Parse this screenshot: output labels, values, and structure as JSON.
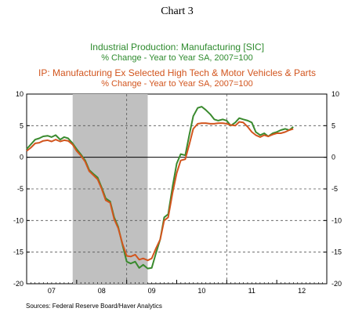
{
  "chart_data": {
    "type": "line",
    "header": "Chart 3",
    "title_lines": [
      {
        "text": "Industrial Production: Manufacturing [SIC]",
        "color": "#2e8b2e"
      },
      {
        "text": "% Change - Year to Year    SA, 2007=100",
        "color": "#2e8b2e"
      },
      {
        "text": "IP: Manufacturing Ex Selected High Tech & Motor Vehicles & Parts",
        "color": "#d2551e"
      },
      {
        "text": "% Change - Year to Year    SA, 2007=100",
        "color": "#d2551e"
      }
    ],
    "source": "Sources:  Federal Reserve Board/Haver Analytics",
    "ylim": [
      -20,
      10
    ],
    "yticks": [
      10,
      5,
      0,
      -5,
      -10,
      -15,
      -20
    ],
    "ytick_labels": [
      "10",
      "5",
      "0",
      "-5",
      "-10",
      "-15",
      "-20"
    ],
    "xlim": [
      2007.0,
      2013.0
    ],
    "x_category_labels": [
      {
        "label": "07",
        "at": 2007.5
      },
      {
        "label": "08",
        "at": 2008.5
      },
      {
        "label": "09",
        "at": 2009.5
      },
      {
        "label": "10",
        "at": 2010.5
      },
      {
        "label": "11",
        "at": 2011.5
      },
      {
        "label": "12",
        "at": 2012.5
      }
    ],
    "recession": {
      "start": 2007.92,
      "end": 2009.42,
      "color": "#c0c0c0"
    },
    "grid": "dashed reference lines at y=5, -5, -10, -15 and years 2009, 2011",
    "series": [
      {
        "color": "#3a8a2e",
        "x": [
          2007.0,
          2007.08,
          2007.17,
          2007.25,
          2007.33,
          2007.42,
          2007.5,
          2007.58,
          2007.67,
          2007.75,
          2007.83,
          2007.92,
          2008.0,
          2008.08,
          2008.17,
          2008.25,
          2008.33,
          2008.42,
          2008.5,
          2008.58,
          2008.67,
          2008.75,
          2008.83,
          2008.92,
          2009.0,
          2009.08,
          2009.17,
          2009.25,
          2009.33,
          2009.42,
          2009.5,
          2009.58,
          2009.67,
          2009.75,
          2009.83,
          2009.92,
          2010.0,
          2010.08,
          2010.17,
          2010.25,
          2010.33,
          2010.42,
          2010.5,
          2010.58,
          2010.67,
          2010.75,
          2010.83,
          2010.92,
          2011.0,
          2011.08,
          2011.17,
          2011.25,
          2011.33,
          2011.42,
          2011.5,
          2011.58,
          2011.67,
          2011.75,
          2011.83,
          2011.92,
          2012.0,
          2012.08,
          2012.17,
          2012.25,
          2012.33
        ],
        "y": [
          1.3,
          2.0,
          2.8,
          3.0,
          3.3,
          3.4,
          3.2,
          3.5,
          2.8,
          3.2,
          3.0,
          2.2,
          1.3,
          0.5,
          -0.5,
          -2.0,
          -2.6,
          -3.2,
          -4.8,
          -6.5,
          -7.0,
          -9.5,
          -11.0,
          -14.0,
          -16.5,
          -16.8,
          -16.5,
          -17.5,
          -17.0,
          -17.6,
          -17.5,
          -15.3,
          -13.0,
          -9.5,
          -9.0,
          -4.5,
          -1.0,
          0.5,
          0.3,
          3.5,
          6.5,
          7.8,
          8.0,
          7.5,
          6.8,
          6.0,
          5.8,
          6.0,
          5.8,
          5.0,
          5.5,
          6.2,
          6.0,
          5.8,
          5.5,
          4.0,
          3.5,
          3.8,
          3.3,
          3.8,
          4.0,
          4.3,
          4.5,
          4.3,
          4.8
        ]
      },
      {
        "color": "#d2551e",
        "x": [
          2007.0,
          2007.08,
          2007.17,
          2007.25,
          2007.33,
          2007.42,
          2007.5,
          2007.58,
          2007.67,
          2007.75,
          2007.83,
          2007.92,
          2008.0,
          2008.08,
          2008.17,
          2008.25,
          2008.33,
          2008.42,
          2008.5,
          2008.58,
          2008.67,
          2008.75,
          2008.83,
          2008.92,
          2009.0,
          2009.08,
          2009.17,
          2009.25,
          2009.33,
          2009.42,
          2009.5,
          2009.58,
          2009.67,
          2009.75,
          2009.83,
          2009.92,
          2010.0,
          2010.08,
          2010.17,
          2010.25,
          2010.33,
          2010.42,
          2010.5,
          2010.58,
          2010.67,
          2010.75,
          2010.83,
          2010.92,
          2011.0,
          2011.08,
          2011.17,
          2011.25,
          2011.33,
          2011.42,
          2011.5,
          2011.58,
          2011.67,
          2011.75,
          2011.83,
          2011.92,
          2012.0,
          2012.08,
          2012.17,
          2012.25,
          2012.33
        ],
        "y": [
          1.0,
          1.5,
          2.2,
          2.3,
          2.6,
          2.7,
          2.5,
          2.8,
          2.5,
          2.7,
          2.6,
          2.0,
          1.0,
          0.3,
          -0.7,
          -2.2,
          -2.8,
          -3.5,
          -5.0,
          -6.8,
          -7.2,
          -9.8,
          -11.2,
          -13.8,
          -15.6,
          -15.7,
          -15.4,
          -16.2,
          -16.0,
          -16.3,
          -16.0,
          -14.5,
          -13.0,
          -10.0,
          -9.5,
          -5.5,
          -2.5,
          -0.5,
          -0.3,
          2.0,
          4.5,
          5.3,
          5.4,
          5.4,
          5.3,
          5.3,
          5.4,
          5.4,
          5.3,
          5.1,
          5.0,
          5.6,
          5.5,
          4.8,
          4.0,
          3.5,
          3.2,
          3.5,
          3.3,
          3.6,
          3.8,
          3.8,
          4.0,
          4.3,
          4.5
        ]
      }
    ]
  }
}
